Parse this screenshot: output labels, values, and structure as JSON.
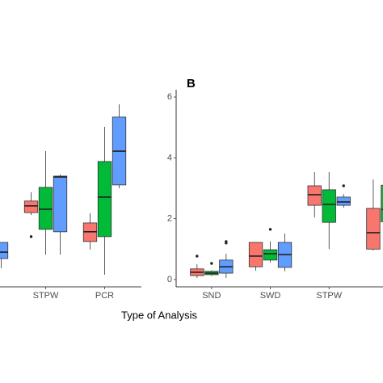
{
  "chart_data": [
    {
      "type": "box",
      "xlabel": "Type of Analysis",
      "categories": [
        null,
        "STPW",
        "PCR"
      ],
      "ylim": [
        -0.24,
        6.24
      ],
      "series": [
        {
          "color": "#F8766D",
          "values": [
            null,
            {
              "min": 2.12,
              "q1": 2.2,
              "median": 2.42,
              "q3": 2.58,
              "max": 2.87,
              "outliers": [
                1.41
              ]
            },
            {
              "min": 0.98,
              "q1": 1.25,
              "median": 1.57,
              "q3": 1.86,
              "max": 2.18,
              "outliers": []
            }
          ]
        },
        {
          "color": "#00BA38",
          "values": [
            null,
            {
              "min": 0.82,
              "q1": 1.65,
              "median": 2.31,
              "q3": 3.03,
              "max": 4.22,
              "outliers": []
            },
            {
              "min": 0.16,
              "q1": 1.41,
              "median": 2.71,
              "q3": 3.88,
              "max": 5.02,
              "outliers": []
            }
          ]
        },
        {
          "color": "#619CFF",
          "values": [
            {
              "min": 0.37,
              "q1": 0.69,
              "median": 0.9,
              "q3": 1.22,
              "max": 1.22,
              "outliers": []
            },
            {
              "min": 0.82,
              "q1": 1.57,
              "median": 3.37,
              "q3": 3.4,
              "max": 3.45,
              "outliers": []
            },
            {
              "min": 3.0,
              "q1": 3.11,
              "median": 4.22,
              "q3": 5.34,
              "max": 5.76,
              "outliers": []
            }
          ]
        }
      ]
    },
    {
      "type": "box",
      "title": "B",
      "categories": [
        "SND",
        "SWD",
        "STPW",
        null
      ],
      "ylim": [
        -0.24,
        6.24
      ],
      "yticks": [
        0,
        2,
        4,
        6
      ],
      "series": [
        {
          "color": "#F8766D",
          "values": [
            {
              "min": 0.05,
              "q1": 0.13,
              "median": 0.24,
              "q3": 0.35,
              "max": 0.5,
              "outliers": [
                0.77
              ]
            },
            {
              "min": 0.29,
              "q1": 0.42,
              "median": 0.77,
              "q3": 1.22,
              "max": 1.22,
              "outliers": []
            },
            {
              "min": 2.04,
              "q1": 2.44,
              "median": 2.79,
              "q3": 3.08,
              "max": 3.53,
              "outliers": []
            },
            {
              "min": 0.96,
              "q1": 1.0,
              "median": 1.54,
              "q3": 2.34,
              "max": 3.29,
              "outliers": []
            }
          ]
        },
        {
          "color": "#00BA38",
          "values": [
            {
              "min": 0.12,
              "q1": 0.16,
              "median": 0.21,
              "q3": 0.27,
              "max": 0.3,
              "outliers": [
                0.53
              ]
            },
            {
              "min": 0.56,
              "q1": 0.64,
              "median": 0.85,
              "q3": 0.98,
              "max": 1.25,
              "outliers": [
                1.65
              ]
            },
            {
              "min": 1.0,
              "q1": 1.88,
              "median": 2.47,
              "q3": 2.95,
              "max": 3.53,
              "outliers": []
            },
            {
              "min": 1.5,
              "q1": 1.9,
              "median": 2.3,
              "q3": 3.1,
              "max": 3.2,
              "outliers": []
            }
          ]
        },
        {
          "color": "#619CFF",
          "values": [
            {
              "min": 0.05,
              "q1": 0.21,
              "median": 0.42,
              "q3": 0.64,
              "max": 0.85,
              "outliers": [
                1.25,
                1.2
              ]
            },
            {
              "min": 0.27,
              "q1": 0.4,
              "median": 0.82,
              "q3": 1.22,
              "max": 1.51,
              "outliers": []
            },
            {
              "min": 2.36,
              "q1": 2.44,
              "median": 2.55,
              "q3": 2.71,
              "max": 2.81,
              "outliers": [
                3.08
              ]
            },
            null
          ]
        }
      ]
    }
  ]
}
